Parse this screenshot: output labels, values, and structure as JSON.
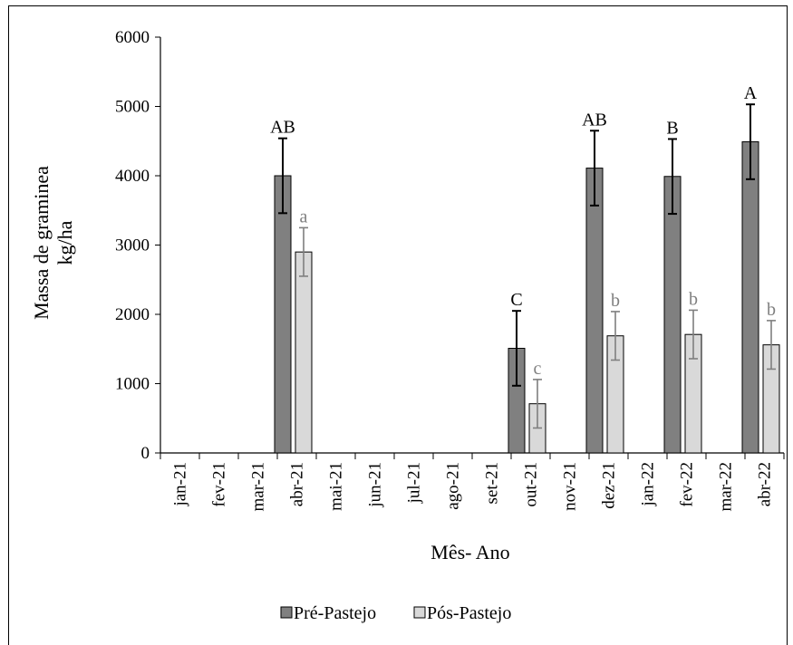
{
  "chart_data": {
    "type": "bar",
    "xlabel": "Mês- Ano",
    "ylabel_line1": "Massa de graminea",
    "ylabel_line2": "kg/ha",
    "ylim": [
      0,
      6000
    ],
    "yticks": [
      0,
      1000,
      2000,
      3000,
      4000,
      5000,
      6000
    ],
    "grid": false,
    "legend_position": "bottom",
    "categories": [
      "jan-21",
      "fev-21",
      "mar-21",
      "abr-21",
      "mai-21",
      "jun-21",
      "jul-21",
      "ago-21",
      "set-21",
      "out-21",
      "nov-21",
      "dez-21",
      "jan-22",
      "fev-22",
      "mar-22",
      "abr-22"
    ],
    "series": [
      {
        "name": "Pré-Pastejo",
        "color": "#808080",
        "values": [
          null,
          null,
          null,
          4000,
          null,
          null,
          null,
          null,
          null,
          1510,
          null,
          4110,
          null,
          3990,
          null,
          4490
        ],
        "errors": [
          null,
          null,
          null,
          540,
          null,
          null,
          null,
          null,
          null,
          540,
          null,
          540,
          null,
          540,
          null,
          540
        ],
        "letters": [
          "",
          "",
          "",
          "AB",
          "",
          "",
          "",
          "",
          "",
          "C",
          "",
          "AB",
          "",
          "B",
          "",
          "A"
        ],
        "letter_color": "#000000",
        "error_color": "#000000"
      },
      {
        "name": "Pós-Pastejo",
        "color": "#d9d9d9",
        "values": [
          null,
          null,
          null,
          2900,
          null,
          null,
          null,
          null,
          null,
          710,
          null,
          1690,
          null,
          1710,
          null,
          1560
        ],
        "errors": [
          null,
          null,
          null,
          350,
          null,
          null,
          null,
          null,
          null,
          350,
          null,
          350,
          null,
          350,
          null,
          350
        ],
        "letters": [
          "",
          "",
          "",
          "a",
          "",
          "",
          "",
          "",
          "",
          "c",
          "",
          "b",
          "",
          "b",
          "",
          "b"
        ],
        "letter_color": "#7f7f7f",
        "error_color": "#7f7f7f"
      }
    ]
  }
}
